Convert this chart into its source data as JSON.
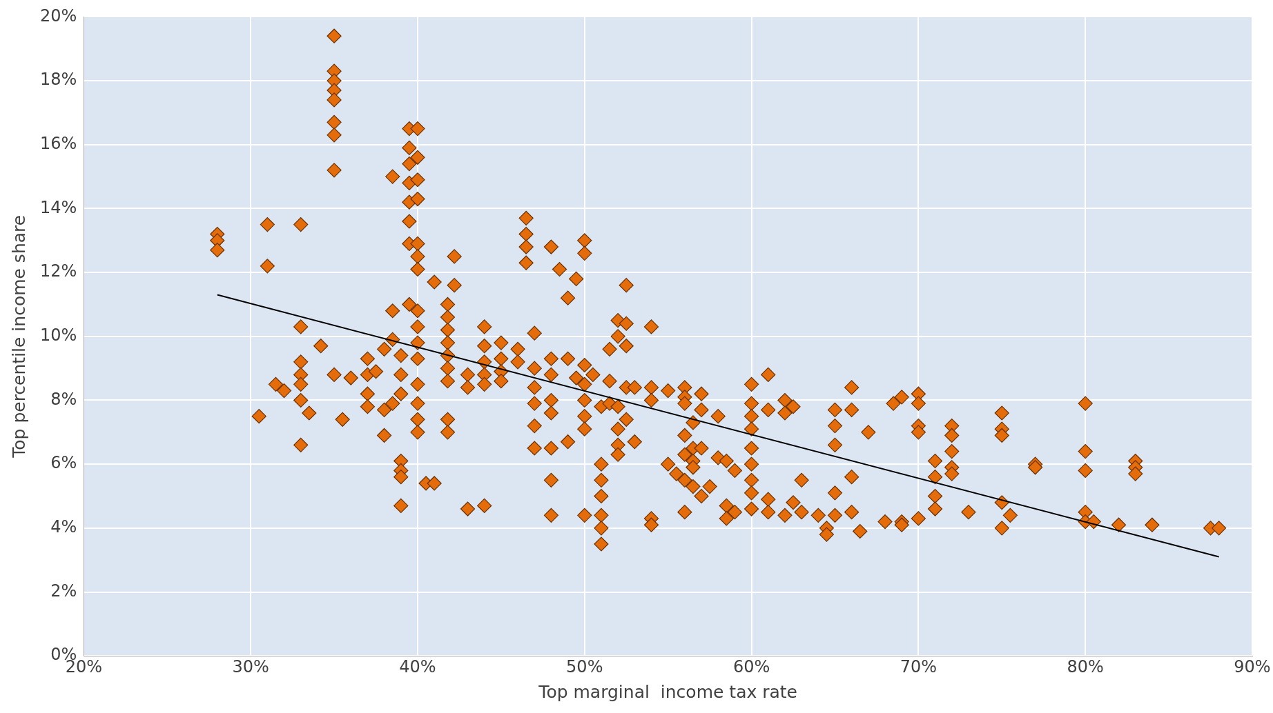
{
  "chart_data": {
    "type": "scatter",
    "xlabel": "Top marginal  income tax rate",
    "ylabel": "Top percentile income share",
    "xlim": [
      20,
      90
    ],
    "ylim": [
      0,
      20
    ],
    "xticks": [
      {
        "value": 20,
        "label": "20%"
      },
      {
        "value": 30,
        "label": "30%"
      },
      {
        "value": 40,
        "label": "40%"
      },
      {
        "value": 50,
        "label": "50%"
      },
      {
        "value": 60,
        "label": "60%"
      },
      {
        "value": 70,
        "label": "70%"
      },
      {
        "value": 80,
        "label": "80%"
      },
      {
        "value": 90,
        "label": "90%"
      }
    ],
    "yticks": [
      {
        "value": 0,
        "label": "0%"
      },
      {
        "value": 2,
        "label": "2%"
      },
      {
        "value": 4,
        "label": "4%"
      },
      {
        "value": 6,
        "label": "6%"
      },
      {
        "value": 8,
        "label": "8%"
      },
      {
        "value": 10,
        "label": "10%"
      },
      {
        "value": 12,
        "label": "12%"
      },
      {
        "value": 14,
        "label": "14%"
      },
      {
        "value": 16,
        "label": "16%"
      },
      {
        "value": 18,
        "label": "18%"
      },
      {
        "value": 20,
        "label": "20%"
      }
    ],
    "grid": true,
    "legend": false,
    "series": [
      {
        "type": "scatter",
        "marker": "diamond",
        "color": "#e46c0a",
        "x": [
          28,
          28,
          28,
          30.5,
          31,
          31,
          31.5,
          32,
          33,
          33,
          33,
          33,
          33,
          33,
          33,
          33.5,
          34.2,
          35,
          35,
          35,
          35,
          35,
          35,
          35,
          35,
          35,
          35.5,
          36,
          37,
          37,
          37,
          37,
          37.5,
          38,
          38,
          38,
          38.5,
          38.5,
          38.5,
          38.5,
          39,
          39,
          39,
          39,
          39,
          39,
          39,
          39.5,
          39.5,
          39.5,
          39.5,
          39.5,
          39.5,
          39.5,
          39.5,
          40,
          40,
          40,
          40,
          40,
          40,
          40,
          40,
          40,
          40,
          40,
          40,
          40,
          40,
          40,
          40.5,
          41,
          41,
          41.8,
          41.8,
          41.8,
          41.8,
          41.8,
          41.8,
          41.8,
          41.8,
          41.8,
          42.2,
          42.2,
          43,
          43,
          43,
          44,
          44,
          44,
          44,
          44,
          44,
          45,
          45,
          45,
          45,
          46,
          46,
          46.5,
          46.5,
          46.5,
          46.5,
          47,
          47,
          47,
          47,
          47,
          47,
          48,
          48,
          48,
          48,
          48,
          48,
          48,
          48,
          48.5,
          49,
          49,
          49,
          49.5,
          49.5,
          50,
          50,
          50,
          50,
          50,
          50,
          50,
          50,
          50.5,
          51,
          51,
          51,
          51,
          51,
          51,
          51,
          51.5,
          51.5,
          51.5,
          52,
          52,
          52,
          52,
          52,
          52,
          52.5,
          52.5,
          52.5,
          52.5,
          52.5,
          53,
          53,
          54,
          54,
          54,
          54,
          54,
          55,
          55,
          55.5,
          56,
          56,
          56,
          56,
          56,
          56,
          56,
          56.5,
          56.5,
          56.5,
          56.5,
          56.5,
          57,
          57,
          57,
          57,
          57.5,
          58,
          58,
          58.5,
          58.5,
          58.5,
          59,
          59,
          60,
          60,
          60,
          60,
          60,
          60,
          60,
          60,
          60,
          61,
          61,
          61,
          61,
          62,
          62,
          62,
          62.5,
          62.5,
          63,
          63,
          64,
          64.5,
          64.5,
          65,
          65,
          65,
          65,
          65,
          66,
          66,
          66,
          66,
          66.5,
          67,
          68,
          68.5,
          69,
          69,
          69,
          70,
          70,
          70,
          70,
          70,
          71,
          71,
          71,
          71,
          72,
          72,
          72,
          72,
          72,
          73,
          75,
          75,
          75,
          75,
          75,
          75.5,
          77,
          77,
          80,
          80,
          80,
          80,
          80,
          80.5,
          82,
          83,
          83,
          83,
          84,
          87.5,
          88
        ],
        "values": [
          13.2,
          13,
          12.7,
          7.5,
          13.5,
          12.2,
          8.5,
          8.3,
          13.5,
          10.3,
          9.2,
          8.8,
          8.5,
          8,
          6.6,
          7.6,
          9.7,
          19.4,
          18.3,
          18,
          17.7,
          17.4,
          16.7,
          16.3,
          15.2,
          8.8,
          7.4,
          8.7,
          9.3,
          8.8,
          8.2,
          7.8,
          8.9,
          7.7,
          6.9,
          9.6,
          15,
          10.8,
          9.9,
          7.9,
          9.4,
          8.8,
          8.2,
          6.1,
          5.8,
          5.6,
          4.7,
          16.5,
          15.9,
          15.4,
          14.8,
          14.2,
          13.6,
          12.9,
          11,
          16.5,
          15.6,
          14.9,
          14.3,
          12.9,
          12.5,
          12.1,
          10.8,
          10.3,
          9.8,
          9.3,
          8.5,
          7.9,
          7.4,
          7,
          5.4,
          5.4,
          11.7,
          11,
          10.6,
          10.2,
          9.8,
          9.4,
          9,
          8.6,
          7.4,
          7,
          12.5,
          11.6,
          8.8,
          8.4,
          4.6,
          10.3,
          9.7,
          9.2,
          8.8,
          8.5,
          4.7,
          9.8,
          9.3,
          8.9,
          8.6,
          9.6,
          9.2,
          13.7,
          13.2,
          12.8,
          12.3,
          10.1,
          9,
          8.4,
          7.9,
          7.2,
          6.5,
          12.8,
          9.3,
          8.8,
          8,
          7.6,
          6.5,
          5.5,
          4.4,
          12.1,
          11.2,
          9.3,
          6.7,
          11.8,
          8.7,
          13,
          12.6,
          9.1,
          8.5,
          8,
          7.5,
          7.1,
          4.4,
          8.8,
          7.8,
          6,
          5.5,
          5,
          4.4,
          4,
          3.5,
          9.6,
          8.6,
          7.9,
          10.5,
          10,
          7.8,
          7.1,
          6.6,
          6.3,
          11.6,
          10.4,
          9.7,
          8.4,
          7.4,
          8.4,
          6.7,
          10.3,
          8.4,
          8,
          4.3,
          4.1,
          8.3,
          6,
          5.7,
          8.4,
          8.1,
          7.9,
          6.9,
          6.3,
          5.5,
          4.5,
          7.3,
          6.5,
          6.1,
          5.9,
          5.3,
          8.2,
          7.7,
          6.5,
          5,
          5.3,
          7.5,
          6.2,
          6.1,
          4.7,
          4.3,
          5.8,
          4.5,
          8.5,
          7.9,
          7.5,
          7.1,
          6.5,
          6,
          5.5,
          5.1,
          4.6,
          8.8,
          7.7,
          4.9,
          4.5,
          8,
          7.6,
          4.4,
          7.8,
          4.8,
          5.5,
          4.5,
          4.4,
          4,
          3.8,
          7.7,
          7.2,
          6.6,
          5.1,
          4.4,
          8.4,
          7.7,
          5.6,
          4.5,
          3.9,
          7,
          4.2,
          7.9,
          8.1,
          4.2,
          4.1,
          8.2,
          7.9,
          7.2,
          7,
          4.3,
          6.1,
          5.6,
          5,
          4.6,
          7.2,
          6.9,
          6.4,
          5.9,
          5.7,
          4.5,
          7.6,
          7.1,
          6.9,
          4.8,
          4,
          4.4,
          6,
          5.9,
          7.9,
          6.4,
          5.8,
          4.5,
          4.2,
          4.2,
          4.1,
          6.1,
          5.9,
          5.7,
          4.1,
          4,
          4
        ]
      },
      {
        "type": "line",
        "color": "#000000",
        "x": [
          28,
          88
        ],
        "values": [
          11.3,
          3.1
        ]
      }
    ]
  }
}
